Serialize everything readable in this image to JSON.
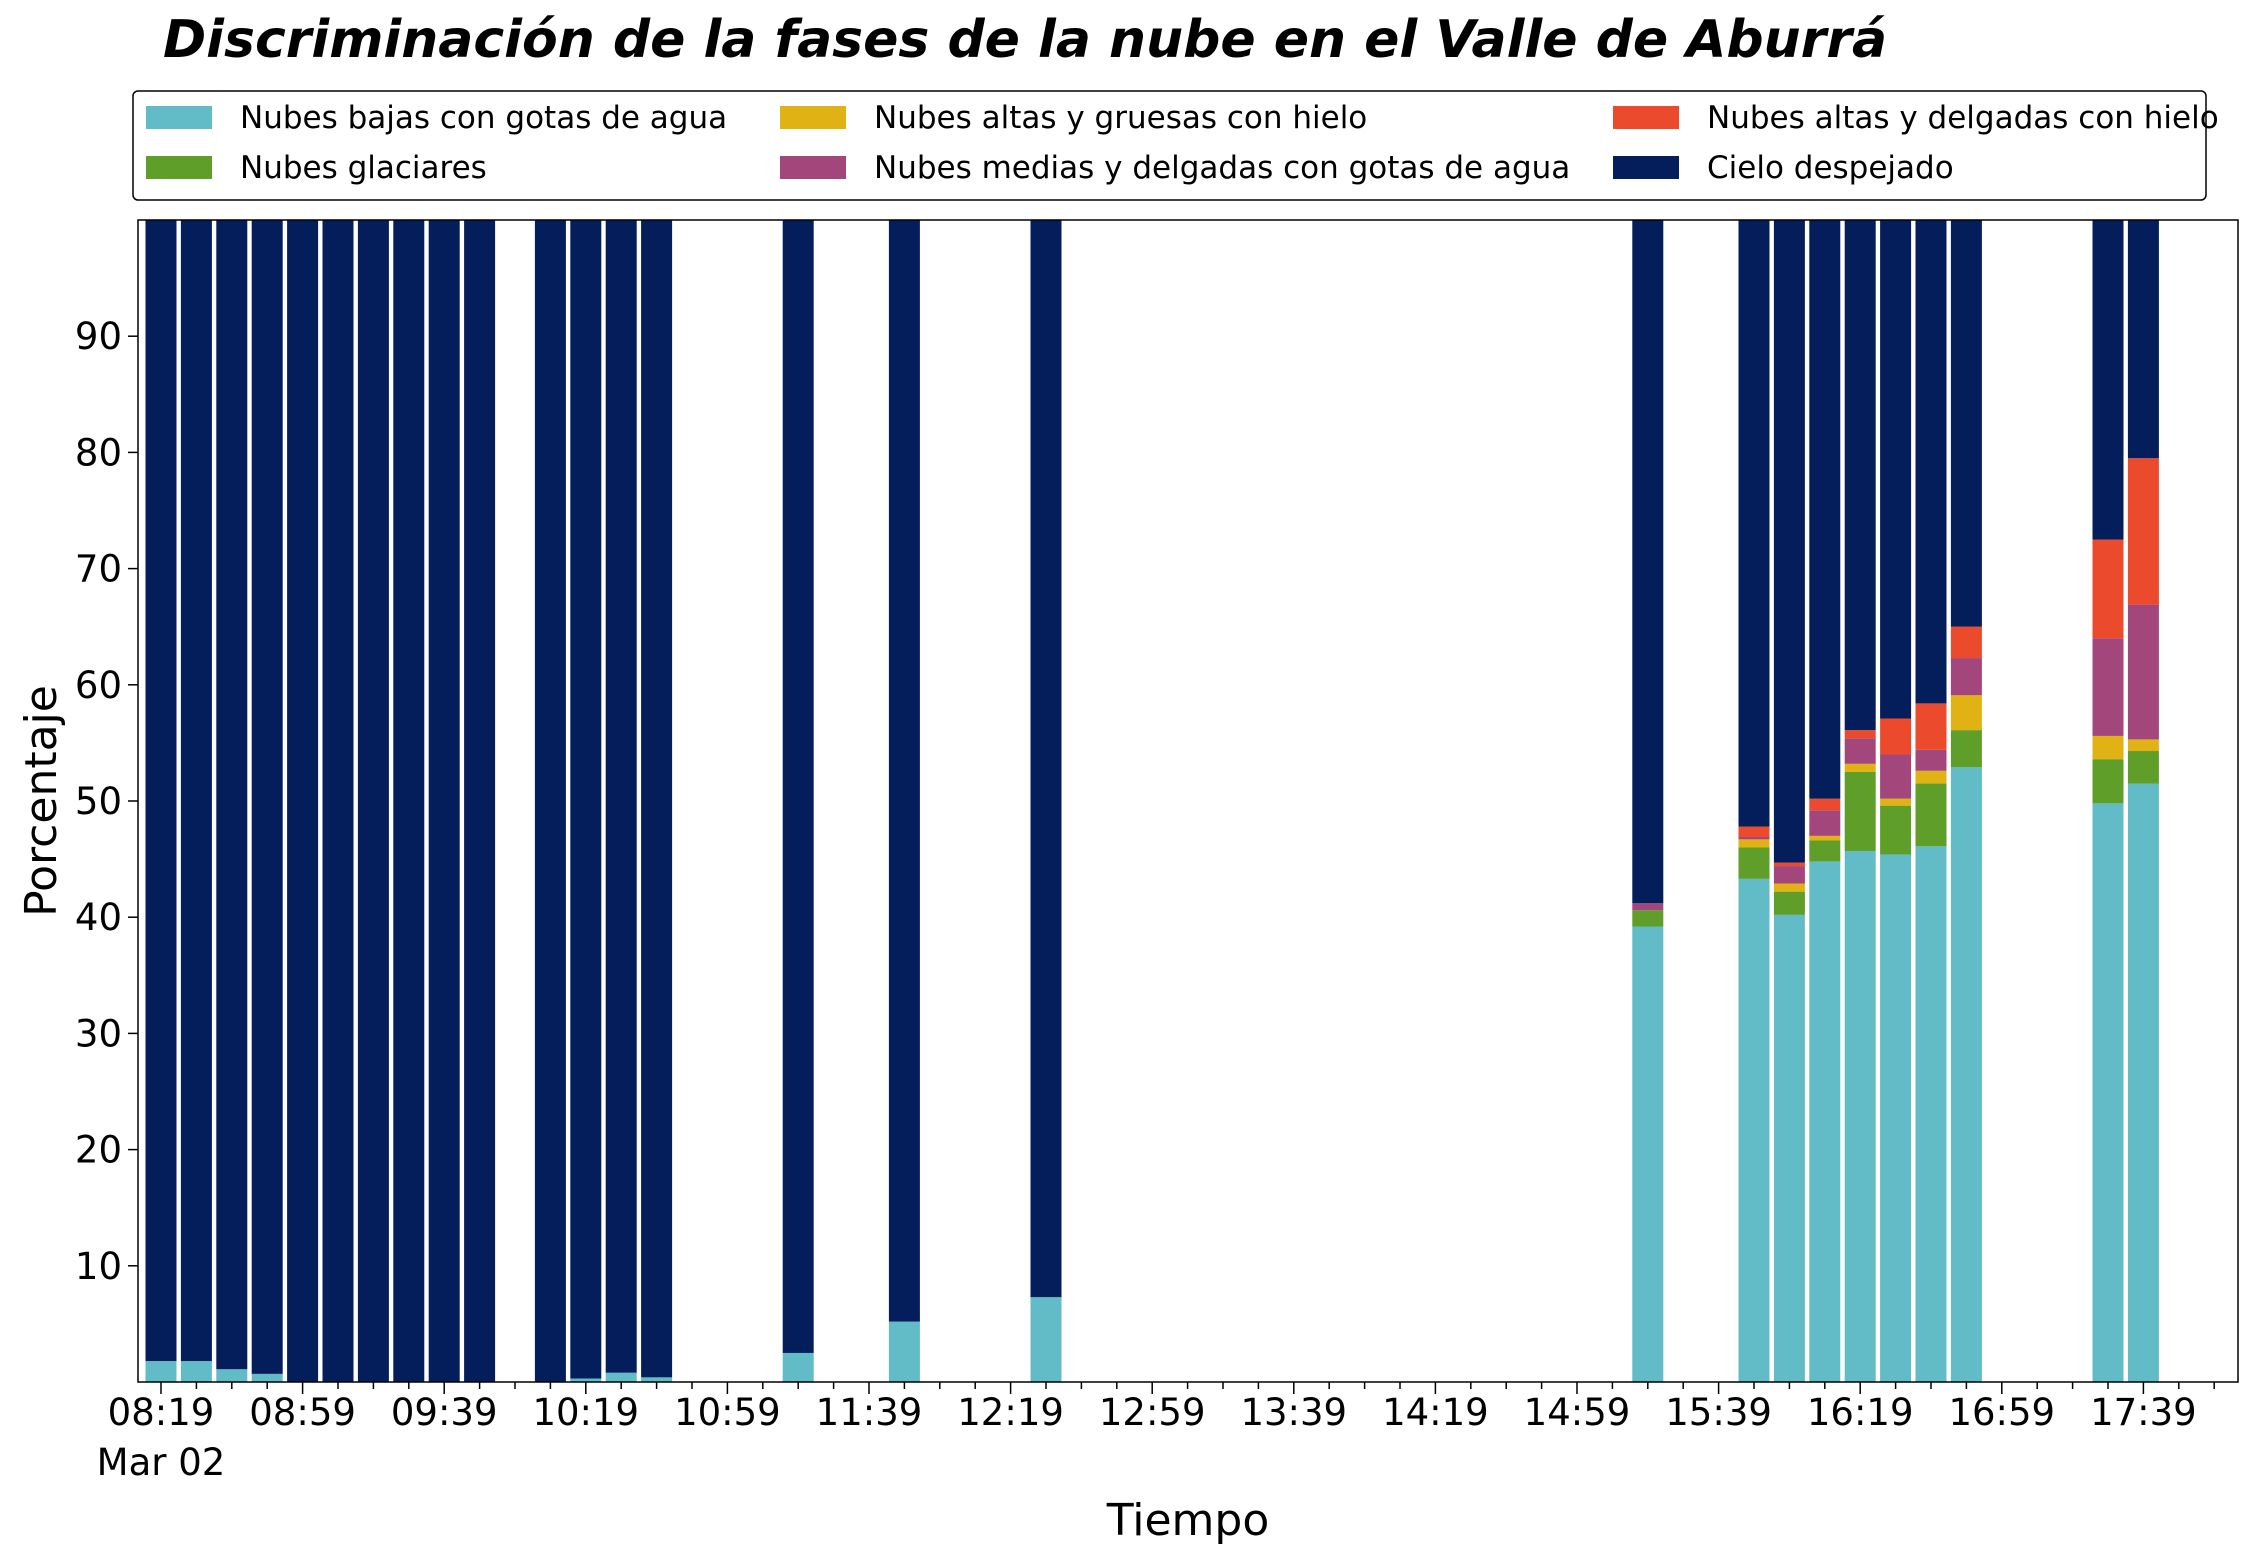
{
  "chart_data": {
    "type": "bar",
    "stacked": true,
    "title": "Discriminación de la fases de la nube en el Valle de Aburrá",
    "xlabel": "Tiempo",
    "ylabel": "Porcentaje",
    "ylim": [
      0,
      100
    ],
    "yticks": [
      10,
      20,
      30,
      40,
      50,
      60,
      70,
      80,
      90
    ],
    "xlim": [
      0,
      59
    ],
    "xtick_labels": [
      "08:19",
      "08:59",
      "09:39",
      "10:19",
      "10:59",
      "11:39",
      "12:19",
      "12:59",
      "13:39",
      "14:19",
      "14:59",
      "15:39",
      "16:19",
      "16:59",
      "17:39"
    ],
    "xtick_date_label": "Mar 02",
    "xtick_step": 4,
    "minor_tick_step": 1,
    "grid": false,
    "legend_position": "top",
    "legend_columns": 3,
    "x": [
      0,
      1,
      2,
      3,
      4,
      5,
      6,
      7,
      8,
      9,
      11,
      12,
      13,
      14,
      18,
      21,
      25,
      42,
      45,
      46,
      47,
      48,
      49,
      50,
      51,
      55,
      56
    ],
    "series": [
      {
        "name": "Nubes bajas con gotas de agua",
        "color": "#62bcc8",
        "values": [
          1.8,
          1.8,
          1.1,
          0.7,
          0,
          0,
          0,
          0,
          0,
          0,
          0,
          0.3,
          0.8,
          0.4,
          2.5,
          5.2,
          7.3,
          39.2,
          43.3,
          40.2,
          44.8,
          45.7,
          45.4,
          46.1,
          52.9,
          49.8,
          51.5
        ]
      },
      {
        "name": "Nubes glaciares",
        "color": "#5e9e29",
        "values": [
          0,
          0,
          0,
          0,
          0,
          0,
          0,
          0,
          0,
          0,
          0,
          0,
          0,
          0,
          0,
          0,
          0,
          1.4,
          2.7,
          2.0,
          1.8,
          6.8,
          4.2,
          5.4,
          3.2,
          3.8,
          2.8
        ]
      },
      {
        "name": "Nubes altas y gruesas con hielo",
        "color": "#e1b214",
        "values": [
          0,
          0,
          0,
          0,
          0,
          0,
          0,
          0,
          0,
          0,
          0,
          0,
          0,
          0,
          0,
          0,
          0,
          0,
          0.7,
          0.7,
          0.4,
          0.7,
          0.6,
          1.1,
          3.0,
          2.0,
          1.0
        ]
      },
      {
        "name": "Nubes medias y delgadas con gotas de agua",
        "color": "#a3467b",
        "values": [
          0,
          0,
          0,
          0,
          0,
          0,
          0,
          0,
          0,
          0,
          0,
          0,
          0,
          0,
          0,
          0,
          0,
          0.6,
          0.2,
          1.5,
          2.2,
          2.2,
          3.8,
          1.8,
          3.2,
          8.4,
          11.6
        ]
      },
      {
        "name": "Nubes altas y delgadas con hielo",
        "color": "#eb4a2c",
        "values": [
          0,
          0,
          0,
          0,
          0,
          0,
          0,
          0,
          0,
          0,
          0,
          0,
          0,
          0,
          0,
          0,
          0,
          0,
          0.9,
          0.3,
          1.0,
          0.7,
          3.1,
          4.0,
          2.7,
          8.5,
          12.6
        ]
      },
      {
        "name": "Cielo despejado",
        "color": "#041e5c",
        "values": [
          98.2,
          98.2,
          98.9,
          99.3,
          100,
          100,
          100,
          100,
          100,
          100,
          100,
          99.7,
          99.2,
          99.6,
          97.5,
          94.8,
          92.7,
          58.8,
          52.2,
          55.3,
          49.8,
          43.9,
          42.9,
          41.6,
          35.0,
          27.5,
          20.5
        ]
      }
    ]
  }
}
